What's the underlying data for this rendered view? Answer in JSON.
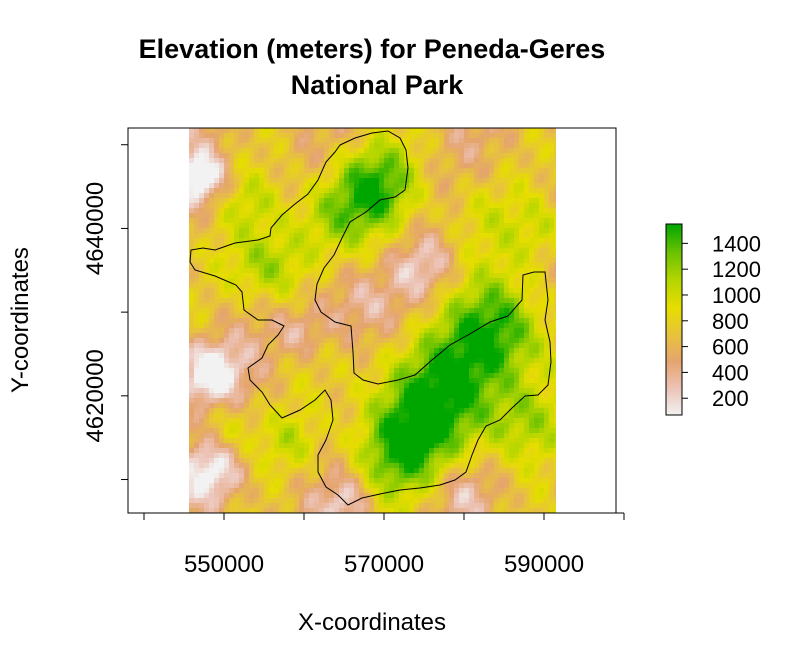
{
  "title": {
    "line1": "Elevation (meters) for Peneda-Geres",
    "line2": "National Park"
  },
  "axes": {
    "xlabel": "X-coordinates",
    "ylabel": "Y-coordinates"
  },
  "chart_data": {
    "type": "heatmap",
    "x_range": [
      538000,
      599000
    ],
    "y_range": [
      4606000,
      4652000
    ],
    "raster_extent": {
      "x": [
        549500,
        594000
      ],
      "y": [
        4606000,
        4652000
      ]
    },
    "x_ticks": [
      540000,
      550000,
      560000,
      570000,
      580000,
      590000,
      600000
    ],
    "x_tick_labels": [
      "550000",
      "570000",
      "590000"
    ],
    "y_ticks": [
      4610000,
      4620000,
      4630000,
      4640000,
      4650000
    ],
    "y_tick_labels": [
      "4620000",
      "4640000"
    ],
    "legend": {
      "title": "",
      "labels": [
        "1400",
        "1200",
        "1000",
        "800",
        "600",
        "400",
        "200"
      ],
      "values": [
        1400,
        1200,
        1000,
        800,
        600,
        400,
        200
      ],
      "range": [
        70,
        1550
      ],
      "colors": [
        "#f2f2f2",
        "#ecc3b6",
        "#e5a46f",
        "#e7c33c",
        "#e6dd00",
        "#b8d600",
        "#6bc200",
        "#00a600"
      ]
    }
  }
}
